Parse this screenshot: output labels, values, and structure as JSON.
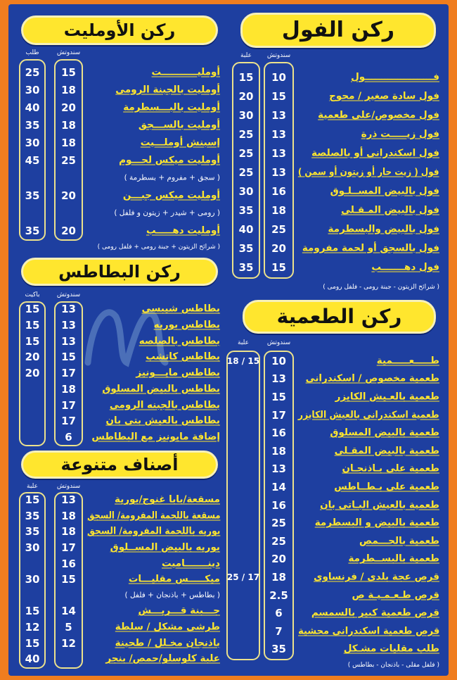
{
  "colors": {
    "background": "#ef7d1f",
    "panel": "#1e3fa0",
    "item_text": "#ffe62e",
    "price_text": "#ffffff",
    "header_pill": "#ffe62e"
  },
  "watermark": "MenuEgypt.com",
  "ful": {
    "title": "ركن الفول",
    "col_sandwich": "سندوتش",
    "col_box": "علبة",
    "items": [
      {
        "name": "فـــــــــــــــــــــول",
        "sandwich": "10",
        "box": "15"
      },
      {
        "name": "فول سادة صغير / محوج",
        "sandwich": "15",
        "box": "20"
      },
      {
        "name": "فول مخصوص/على طعمية",
        "sandwich": "13",
        "box": "30"
      },
      {
        "name": "فول زيـــــت ذرة",
        "sandwich": "13",
        "box": "25"
      },
      {
        "name": "فول اسكندرانى أو بالصلصة",
        "sandwich": "13",
        "box": "25"
      },
      {
        "name": "فول ( زيت حار أو زيتون أو سمن )",
        "sandwich": "13",
        "box": "25"
      },
      {
        "name": "فول بالبيض المســلـوق",
        "sandwich": "16",
        "box": "30"
      },
      {
        "name": "فول بالبيض المـقـلى",
        "sandwich": "18",
        "box": "35"
      },
      {
        "name": "فول بالبيض والبسطرمة",
        "sandwich": "25",
        "box": "40"
      },
      {
        "name": "فول بالسجق أو لحمة مفرومة",
        "sandwich": "20",
        "box": "35"
      },
      {
        "name": "فول دهـــــــب",
        "sandwich": "15",
        "box": "35"
      }
    ],
    "note": "( شرائح الزيتون - جبنة رومى - فلفل رومى )"
  },
  "omelet": {
    "title": "ركن الأومليت",
    "col_sandwich": "سندوتش",
    "col_box": "طلب",
    "items": [
      {
        "name": "أومليـــــــــــت",
        "sandwich": "15",
        "box": "25"
      },
      {
        "name": "أومليت بالجبنة الرومى",
        "sandwich": "18",
        "box": "30"
      },
      {
        "name": "أومليت بالبـــسطرمة",
        "sandwich": "20",
        "box": "40"
      },
      {
        "name": "أومليت بالســـجق",
        "sandwich": "18",
        "box": "35"
      },
      {
        "name": "إسبنش أوملـــيت",
        "sandwich": "18",
        "box": "30"
      },
      {
        "name": "أومليت ميكس لحـــوم",
        "sandwich": "25",
        "box": "45"
      },
      {
        "note": "( سجق + مفروم + بسطرمة )"
      },
      {
        "name": "أومليت ميكس جبـــن",
        "sandwich": "20",
        "box": "35"
      },
      {
        "note": "( رومى + شيدر + زيتون و فلفل )"
      },
      {
        "name": "أومليت دهـــــب",
        "sandwich": "20",
        "box": "35"
      }
    ],
    "note": "( شرائح الزيتون + جبنة رومى + فلفل رومى )"
  },
  "potatoes": {
    "title": "ركن البطاطس",
    "col_sandwich": "سندوتش",
    "col_box": "باكيت",
    "items": [
      {
        "name": "بطاطس شيبسى",
        "sandwich": "13",
        "box": "15"
      },
      {
        "name": "بطاطس بوريه",
        "sandwich": "13",
        "box": "15"
      },
      {
        "name": "بطاطس بالصلصه",
        "sandwich": "13",
        "box": "15"
      },
      {
        "name": "بطاطس كاتشب",
        "sandwich": "15",
        "box": "20"
      },
      {
        "name": "بطاطس مايـــونيز",
        "sandwich": "17",
        "box": "20"
      },
      {
        "name": "بطاطس بالبيض المسلوق",
        "sandwich": "18",
        "box": ""
      },
      {
        "name": "بطاطس بالجبنه الرومى",
        "sandwich": "17",
        "box": ""
      },
      {
        "name": "بطاطس بالعيش بتى بان",
        "sandwich": "17",
        "box": ""
      },
      {
        "name": "إضافة مايونيز مع البطاطس",
        "sandwich": "6",
        "box": ""
      }
    ]
  },
  "misc": {
    "title": "أصناف متنوعة",
    "col_sandwich": "سندوتش",
    "col_box": "علبة",
    "items": [
      {
        "name": "مسقعة/بابا غنوج/بورية",
        "sandwich": "13",
        "box": "15"
      },
      {
        "name": "مسقعة باللحمة المفرومة/ السجق",
        "sandwich": "18",
        "box": "35"
      },
      {
        "name": "بوريه باللحمة المفرومة/ السجق",
        "sandwich": "18",
        "box": "35"
      },
      {
        "name": "بوريه بالبيض المســلوق",
        "sandwich": "17",
        "box": "30"
      },
      {
        "name": "دينـــــــاميت",
        "sandwich": "16",
        "box": ""
      },
      {
        "name": "ميكـــــس مقليـــات",
        "sandwich": "15",
        "box": "30"
      },
      {
        "note": "( بطاطس + باذنجان + فلفل )"
      },
      {
        "name": "جـــبنة قـــريـــش",
        "sandwich": "14",
        "box": "15"
      },
      {
        "name": "طرشى مشكل / سلطة",
        "sandwich": "5",
        "box": "12"
      },
      {
        "name": "باذنجان مخـلل / طحينة",
        "sandwich": "12",
        "box": "15"
      },
      {
        "name": "علبة كلوسلو/حمص/ بنجر",
        "sandwich": "",
        "box": "40"
      }
    ]
  },
  "taameya": {
    "title": "ركن الطعمية",
    "col_sandwich": "سندوتش",
    "col_box": "علبة",
    "items": [
      {
        "name": "طـــــعـــــمية",
        "sandwich": "10",
        "box": "18 / 15"
      },
      {
        "name": "طعمية مخصوص / اسكندرانى",
        "sandwich": "13",
        "box": ""
      },
      {
        "name": "طعمية بالعـيش الكايزر",
        "sandwich": "15",
        "box": ""
      },
      {
        "name": "طعمية اسكندرانى بالعيش الكايزر",
        "sandwich": "17",
        "box": ""
      },
      {
        "name": "طعمية بالبيض المسلوق",
        "sandwich": "16",
        "box": ""
      },
      {
        "name": "طعمية بالبيض المقـلى",
        "sandwich": "18",
        "box": ""
      },
      {
        "name": "طعمية على بـاذنجـان",
        "sandwich": "13",
        "box": ""
      },
      {
        "name": "طعمية على بـطــاطس",
        "sandwich": "14",
        "box": ""
      },
      {
        "name": "طعمية بالعيش البـاتى بان",
        "sandwich": "16",
        "box": ""
      },
      {
        "name": "طعمية بالبيض و البسطرمة",
        "sandwich": "25",
        "box": ""
      },
      {
        "name": "طعمية بالحـــمص",
        "sandwich": "25",
        "box": ""
      },
      {
        "name": "طعمية بالبســطرمة",
        "sandwich": "20",
        "box": ""
      },
      {
        "name": "قرص عجة بلدى / فرنساوى",
        "sandwich": "18",
        "box": "25 / 17"
      },
      {
        "name": "قرص طـعـمـيـة ص",
        "sandwich": "2.5",
        "box": ""
      },
      {
        "name": "قرص طعمية كبير بالسمسم",
        "sandwich": "6",
        "box": ""
      },
      {
        "name": "قرص طعمية اسكندرانى محشية",
        "sandwich": "7",
        "box": ""
      },
      {
        "name": "طلب مقليات مشـكل",
        "sandwich": "35",
        "box": ""
      }
    ],
    "note": "( فلفل مقلى - باذنجان - بطاطس )"
  }
}
